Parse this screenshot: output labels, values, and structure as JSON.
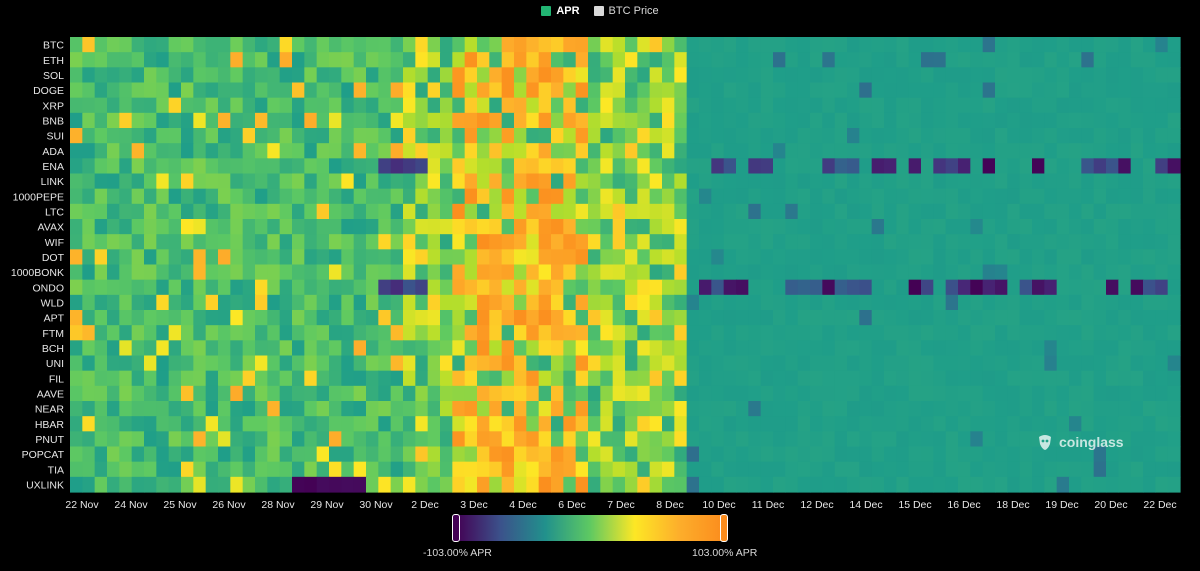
{
  "legend": {
    "items": [
      {
        "label": "APR",
        "color": "#22b573"
      },
      {
        "label": "BTC Price",
        "color": "#d9d9d9"
      }
    ]
  },
  "watermark": {
    "text": "coinglass"
  },
  "colorbar": {
    "min_label": "-103.00% APR",
    "max_label": "103.00% APR",
    "min_value": -103,
    "max_value": 103
  },
  "chart_data": {
    "type": "heatmap",
    "title": "",
    "xlabel": "",
    "ylabel": "",
    "colorscale": "viridis-to-orange",
    "value_range": [
      -103,
      103
    ],
    "y_categories": [
      "BTC",
      "ETH",
      "SOL",
      "DOGE",
      "XRP",
      "BNB",
      "SUI",
      "ADA",
      "ENA",
      "LINK",
      "1000PEPE",
      "LTC",
      "AVAX",
      "WIF",
      "DOT",
      "1000BONK",
      "ONDO",
      "WLD",
      "APT",
      "FTM",
      "BCH",
      "UNI",
      "FIL",
      "AAVE",
      "NEAR",
      "HBAR",
      "PNUT",
      "POPCAT",
      "TIA",
      "UXLINK"
    ],
    "x_tick_labels": [
      "22 Nov",
      "24 Nov",
      "25 Nov",
      "26 Nov",
      "28 Nov",
      "29 Nov",
      "30 Nov",
      "2 Dec",
      "3 Dec",
      "4 Dec",
      "6 Dec",
      "7 Dec",
      "8 Dec",
      "10 Dec",
      "11 Dec",
      "12 Dec",
      "14 Dec",
      "15 Dec",
      "16 Dec",
      "18 Dec",
      "19 Dec",
      "20 Dec",
      "22 Dec"
    ],
    "time_period_count": 90,
    "period_approx_apr": [
      {
        "range": "22 Nov - 2 Dec",
        "typical_apr": 35
      },
      {
        "range": "2 Dec - 8 Dec",
        "typical_apr": 60
      },
      {
        "range": "9 Dec - 22 Dec",
        "typical_apr": 10
      }
    ],
    "notable_low_rows": [
      {
        "symbol": "ENA",
        "min_apr": -103
      },
      {
        "symbol": "ONDO",
        "min_apr": -103
      }
    ]
  }
}
